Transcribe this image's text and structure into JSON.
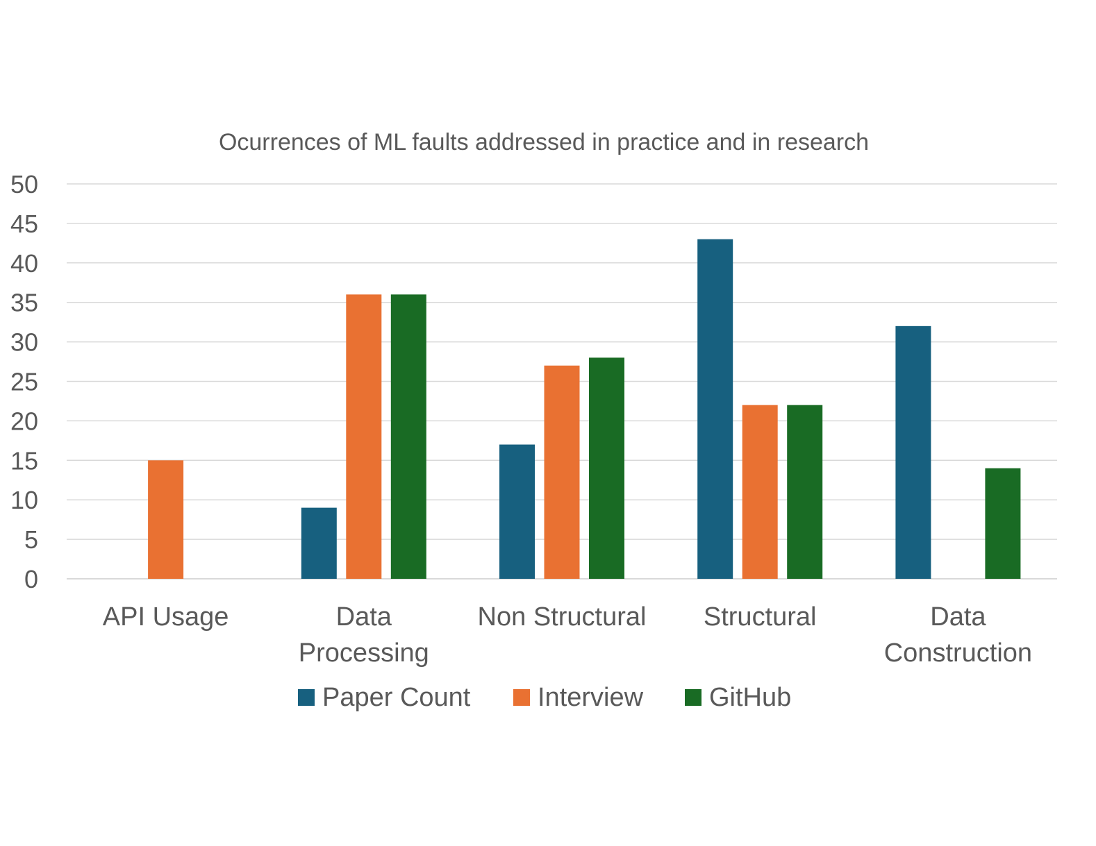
{
  "chart_data": {
    "type": "bar",
    "title": "Ocurrences of ML faults addressed in practice and in research",
    "xlabel": "",
    "ylabel": "",
    "ylim": [
      0,
      50
    ],
    "yticks": [
      0,
      5,
      10,
      15,
      20,
      25,
      30,
      35,
      40,
      45,
      50
    ],
    "grid": true,
    "legend_position": "bottom",
    "categories": [
      "API Usage",
      "Data Processing",
      "Non Structural",
      "Structural",
      "Data Construction"
    ],
    "category_lines": [
      [
        "API Usage"
      ],
      [
        "Data",
        "Processing"
      ],
      [
        "Non Structural"
      ],
      [
        "Structural"
      ],
      [
        "Data",
        "Construction"
      ]
    ],
    "series": [
      {
        "name": "Paper Count",
        "color": "#17607f",
        "values": [
          0,
          9,
          17,
          43,
          32
        ]
      },
      {
        "name": "Interview",
        "color": "#e97132",
        "values": [
          15,
          36,
          27,
          22,
          0
        ]
      },
      {
        "name": "GitHub",
        "color": "#196b24",
        "values": [
          0,
          36,
          28,
          22,
          14
        ]
      }
    ]
  }
}
